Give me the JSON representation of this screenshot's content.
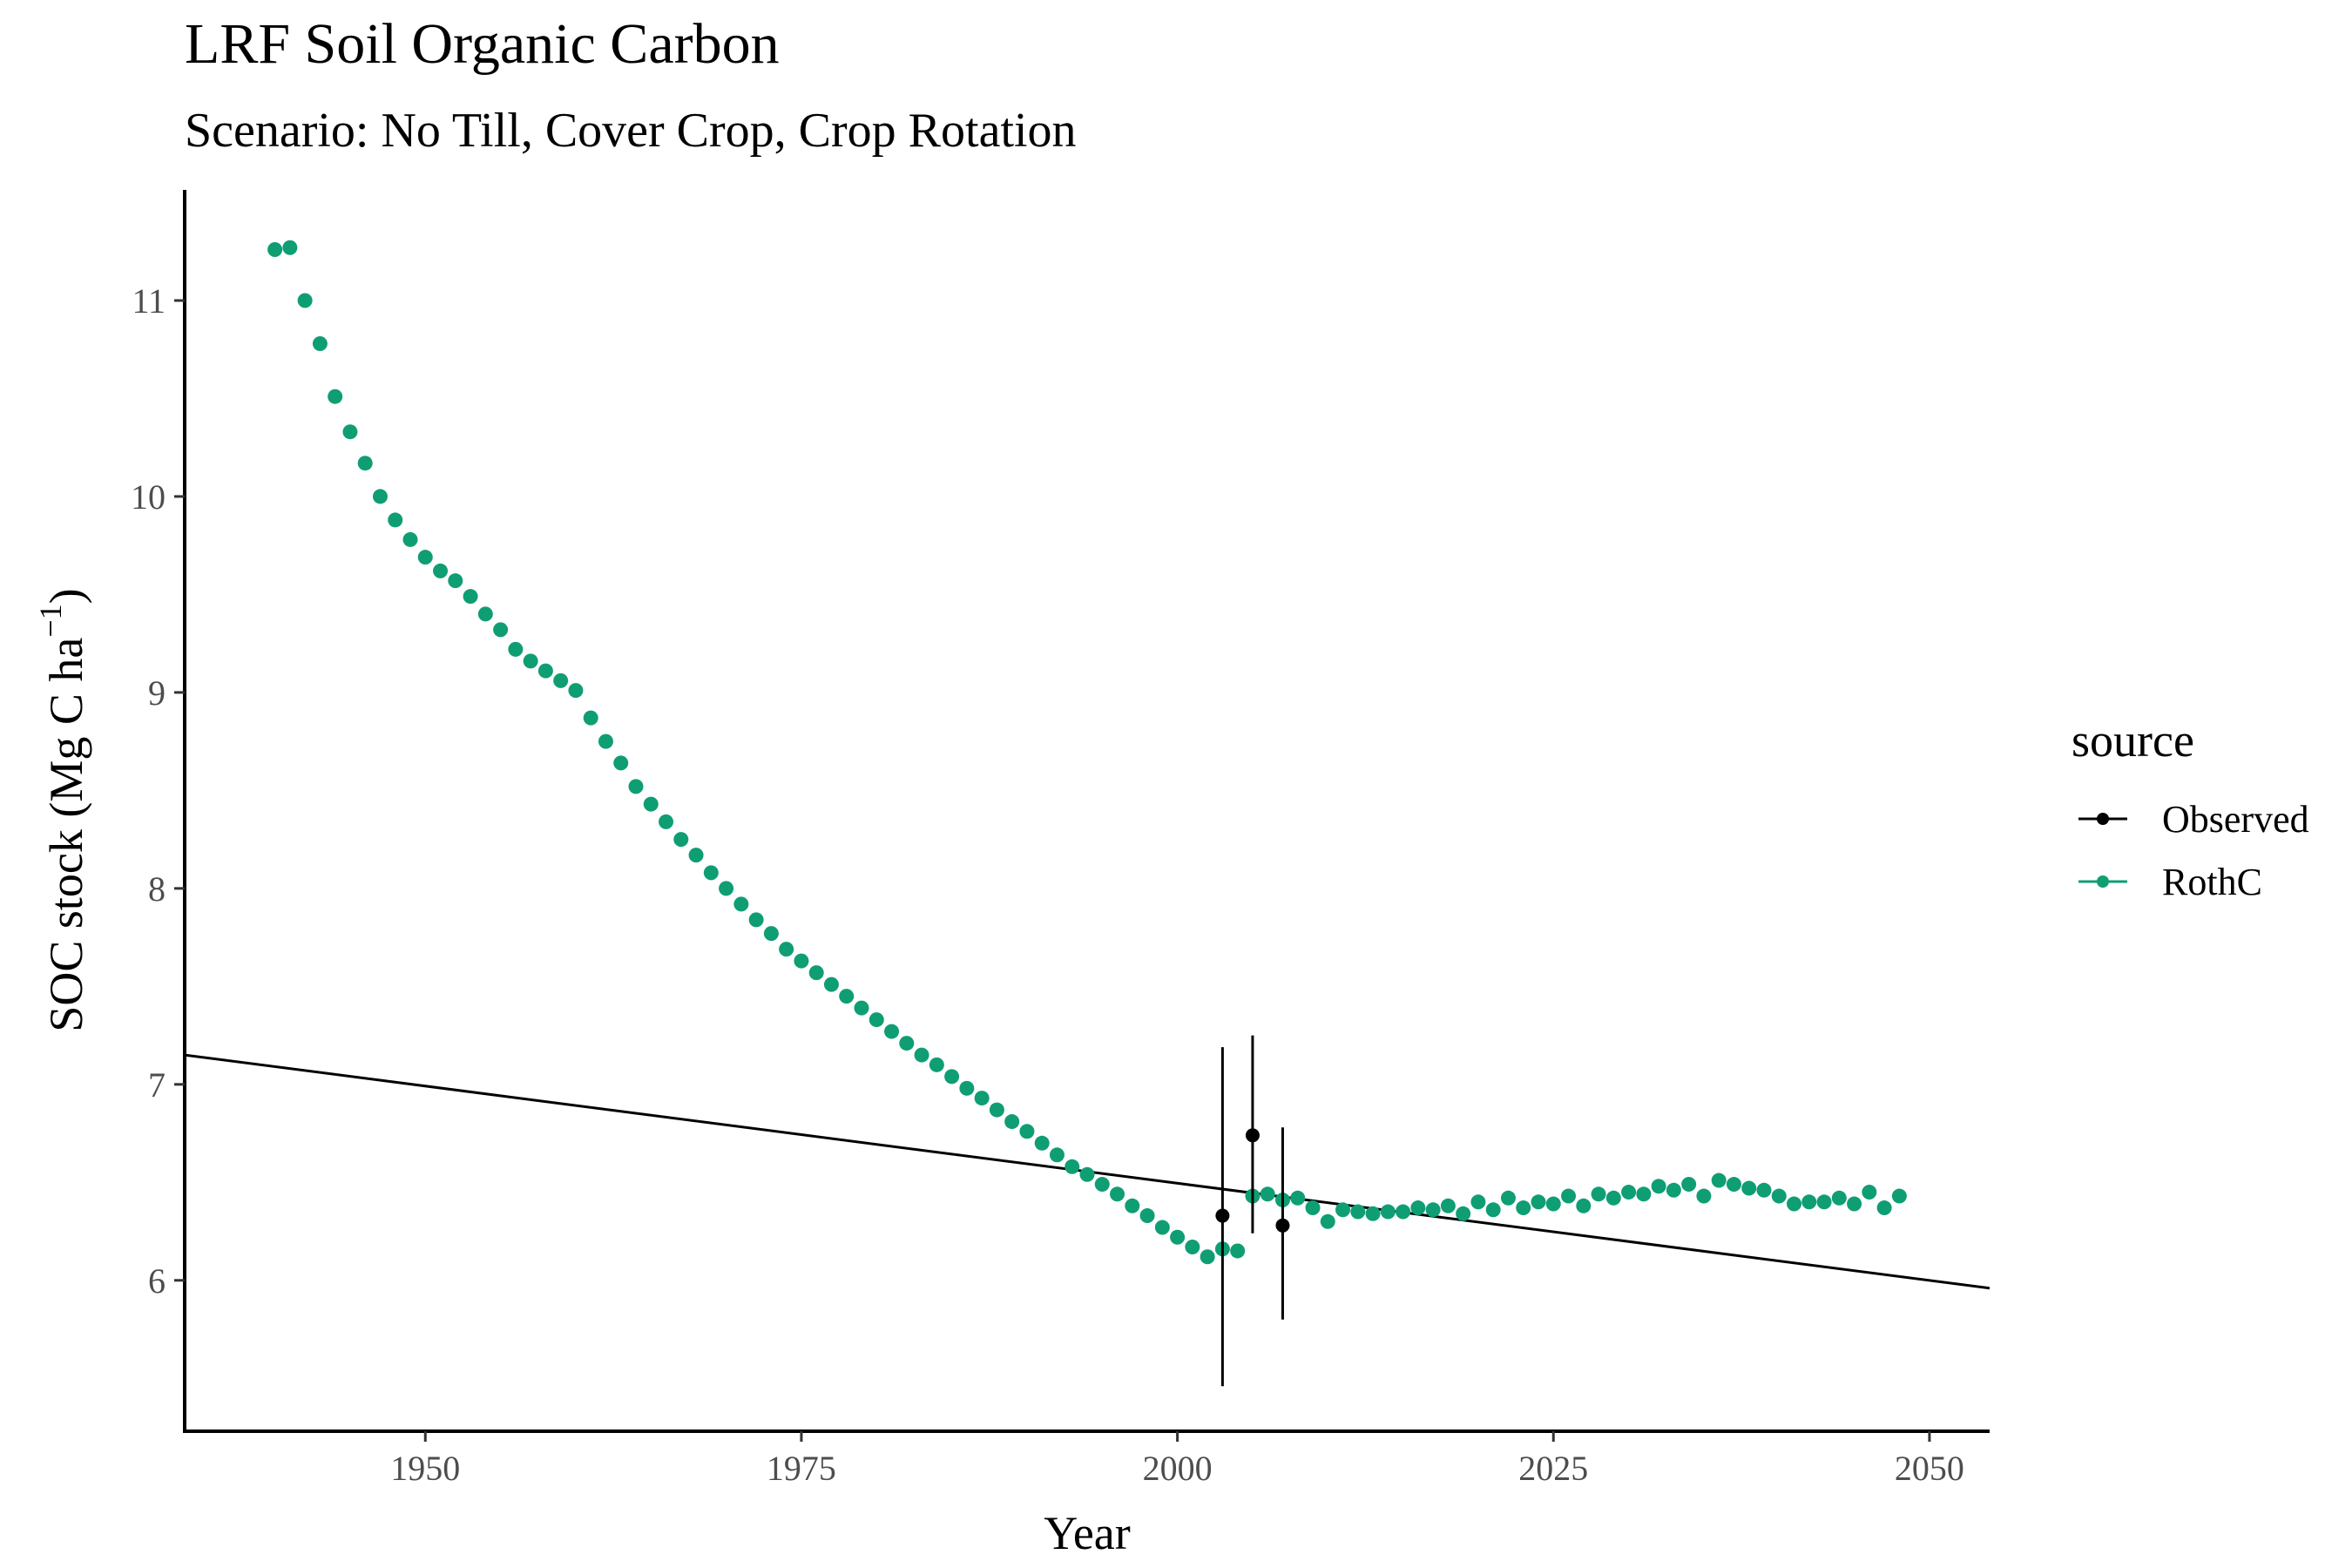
{
  "chart_data": {
    "type": "scatter",
    "title": "LRF Soil Organic Carbon",
    "subtitle": "Scenario: No Till, Cover Crop, Crop Rotation",
    "xlabel": "Year",
    "ylabel_main": "SOC stock (Mg C ha",
    "ylabel_sup": "−1",
    "ylabel_close": ")",
    "xlim": [
      1934,
      2054
    ],
    "ylim": [
      5.23,
      11.6
    ],
    "x_ticks": [
      1950,
      1975,
      2000,
      2025,
      2050
    ],
    "x_tick_labels": [
      "1950",
      "1975",
      "2000",
      "2025",
      "2050"
    ],
    "y_ticks": [
      6,
      7,
      8,
      9,
      10,
      11
    ],
    "y_tick_labels": [
      "6",
      "7",
      "8",
      "9",
      "10",
      "11"
    ],
    "grid": false,
    "legend": {
      "title": "source",
      "placement": "right",
      "entries": [
        {
          "name": "Observed",
          "color": "#000000"
        },
        {
          "name": "RothC",
          "color": "#0f9e73"
        }
      ]
    },
    "series": [
      {
        "name": "RothC",
        "color": "#0f9e73",
        "x": [
          1940,
          1941,
          1942,
          1943,
          1944,
          1945,
          1946,
          1947,
          1948,
          1949,
          1950,
          1951,
          1952,
          1953,
          1954,
          1955,
          1956,
          1957,
          1958,
          1959,
          1960,
          1961,
          1962,
          1963,
          1964,
          1965,
          1966,
          1967,
          1968,
          1969,
          1970,
          1971,
          1972,
          1973,
          1974,
          1975,
          1976,
          1977,
          1978,
          1979,
          1980,
          1981,
          1982,
          1983,
          1984,
          1985,
          1986,
          1987,
          1988,
          1989,
          1990,
          1991,
          1992,
          1993,
          1994,
          1995,
          1996,
          1997,
          1998,
          1999,
          2000,
          2001,
          2002,
          2003,
          2004,
          2005,
          2006,
          2007,
          2008,
          2009,
          2010,
          2011,
          2012,
          2013,
          2014,
          2015,
          2016,
          2017,
          2018,
          2019,
          2020,
          2021,
          2022,
          2023,
          2024,
          2025,
          2026,
          2027,
          2028,
          2029,
          2030,
          2031,
          2032,
          2033,
          2034,
          2035,
          2036,
          2037,
          2038,
          2039,
          2040,
          2041,
          2042,
          2043,
          2044,
          2045,
          2046,
          2047,
          2048
        ],
        "y": [
          11.26,
          11.27,
          11.0,
          10.78,
          10.51,
          10.33,
          10.17,
          10.0,
          9.88,
          9.78,
          9.69,
          9.62,
          9.57,
          9.49,
          9.4,
          9.32,
          9.22,
          9.16,
          9.11,
          9.06,
          9.01,
          8.87,
          8.75,
          8.64,
          8.52,
          8.43,
          8.34,
          8.25,
          8.17,
          8.08,
          8.0,
          7.92,
          7.84,
          7.77,
          7.69,
          7.63,
          7.57,
          7.51,
          7.45,
          7.39,
          7.33,
          7.27,
          7.21,
          7.15,
          7.1,
          7.04,
          6.98,
          6.93,
          6.87,
          6.81,
          6.76,
          6.7,
          6.64,
          6.58,
          6.54,
          6.49,
          6.44,
          6.38,
          6.33,
          6.27,
          6.22,
          6.17,
          6.12,
          6.16,
          6.15,
          6.43,
          6.44,
          6.41,
          6.42,
          6.37,
          6.3,
          6.36,
          6.35,
          6.34,
          6.35,
          6.35,
          6.37,
          6.36,
          6.38,
          6.34,
          6.4,
          6.36,
          6.42,
          6.37,
          6.4,
          6.39,
          6.43,
          6.38,
          6.44,
          6.42,
          6.45,
          6.44,
          6.48,
          6.46,
          6.49,
          6.43,
          6.51,
          6.49,
          6.47,
          6.46,
          6.43,
          6.39,
          6.4,
          6.4,
          6.42,
          6.39,
          6.45,
          6.37,
          6.43
        ]
      },
      {
        "name": "Observed",
        "color": "#000000",
        "x": [
          2003,
          2005,
          2007
        ],
        "y": [
          6.33,
          6.74,
          6.28
        ],
        "ymin": [
          5.46,
          6.24,
          5.8
        ],
        "ymax": [
          7.19,
          7.25,
          6.78
        ]
      }
    ],
    "trend_line": {
      "x": [
        1934,
        2054
      ],
      "y": [
        7.15,
        5.96
      ],
      "color": "#000000"
    }
  }
}
